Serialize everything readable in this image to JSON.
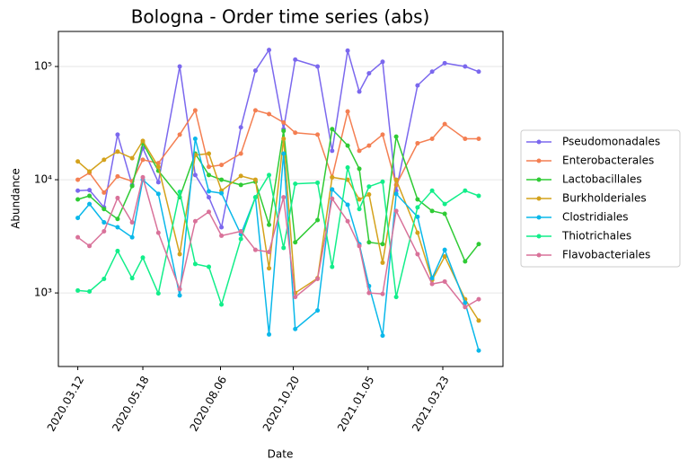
{
  "chart_data": {
    "type": "line",
    "title": "Bologna - Order time series (abs)",
    "xlabel": "Date",
    "ylabel": "Abundance",
    "log_y": true,
    "grid": true,
    "legend": "outside right",
    "x": [
      "2020.03.12",
      "2020.03.24",
      "2020.04.08",
      "2020.04.22",
      "2020.05.07",
      "2020.05.18",
      "2020.06.03",
      "2020.06.25",
      "2020.07.11",
      "2020.07.25",
      "2020.08.07",
      "2020.08.27",
      "2020.09.11",
      "2020.09.25",
      "2020.10.10",
      "2020.10.22",
      "2020.11.14",
      "2020.11.29",
      "2020.12.15",
      "2020.12.27",
      "2021.01.06",
      "2021.01.20",
      "2021.02.03",
      "2021.02.25",
      "2021.03.12",
      "2021.03.25",
      "2021.04.15",
      "2021.04.29"
    ],
    "xlim": [
      "2020.02.21",
      "2021.05.24"
    ],
    "xticks": [
      "2020.03.12",
      "2020.05.18",
      "2020.08.06",
      "2020.10.20",
      "2021.01.05",
      "2021.03.23"
    ],
    "ylim": [
      224,
      204000
    ],
    "yticks": [
      {
        "value": 1000,
        "label": "10³"
      },
      {
        "value": 10000,
        "label": "10⁴"
      },
      {
        "value": 100000,
        "label": "10⁵"
      }
    ],
    "series": [
      {
        "name": "Pseudomonadales",
        "color": "#7b68ee",
        "values": [
          8000,
          8100,
          5700,
          25000,
          9000,
          19000,
          9500,
          100000,
          11000,
          7000,
          3800,
          29000,
          92000,
          140000,
          28000,
          115000,
          100000,
          18000,
          138000,
          60000,
          87000,
          110000,
          8000,
          68000,
          90000,
          107000,
          100000,
          90000
        ]
      },
      {
        "name": "Enterobacterales",
        "color": "#f47f52",
        "values": [
          10000,
          11500,
          7700,
          10700,
          9700,
          15000,
          14000,
          25000,
          41000,
          13000,
          13500,
          17000,
          41000,
          38000,
          32000,
          26000,
          25000,
          10500,
          40000,
          18000,
          20000,
          25000,
          9000,
          21000,
          23000,
          31000,
          23000,
          23000
        ]
      },
      {
        "name": "Lactobacillales",
        "color": "#2fcb35",
        "values": [
          6700,
          7200,
          5500,
          4500,
          8800,
          21000,
          12000,
          7000,
          17000,
          11000,
          10000,
          9000,
          9600,
          4000,
          27000,
          2800,
          4400,
          28000,
          20000,
          12500,
          2800,
          2700,
          24000,
          6700,
          5300,
          5000,
          1900,
          2700
        ]
      },
      {
        "name": "Burkholderiales",
        "color": "#d4a21c",
        "values": [
          14500,
          11800,
          15000,
          17700,
          15500,
          22000,
          13000,
          2200,
          16500,
          17000,
          8000,
          10800,
          10000,
          1650,
          23000,
          1000,
          1350,
          10500,
          10000,
          6700,
          7400,
          1850,
          10000,
          3400,
          1300,
          2100,
          880,
          570
        ]
      },
      {
        "name": "Clostridiales",
        "color": "#0ab8ea",
        "values": [
          4600,
          6100,
          4200,
          3800,
          3100,
          10000,
          7500,
          950,
          23000,
          7900,
          7600,
          3300,
          7000,
          430,
          17000,
          480,
          700,
          8200,
          6000,
          2700,
          1150,
          420,
          7500,
          4700,
          1350,
          2400,
          820,
          310
        ]
      },
      {
        "name": "Thiotrichales",
        "color": "#12ee8a",
        "values": [
          1050,
          1030,
          1330,
          2350,
          1350,
          2050,
          990,
          7800,
          1800,
          1700,
          790,
          3000,
          7000,
          11000,
          2500,
          9200,
          9400,
          1700,
          12800,
          5500,
          8700,
          9600,
          920,
          5700,
          8000,
          6100,
          8000,
          7200
        ]
      },
      {
        "name": "Flavobacteriales",
        "color": "#d9729a",
        "values": [
          3100,
          2600,
          3500,
          6900,
          4200,
          10500,
          3400,
          1080,
          4300,
          5200,
          3200,
          3500,
          2400,
          2300,
          7000,
          920,
          1330,
          6800,
          4300,
          2600,
          1000,
          980,
          5300,
          2200,
          1200,
          1260,
          750,
          880
        ]
      }
    ]
  }
}
